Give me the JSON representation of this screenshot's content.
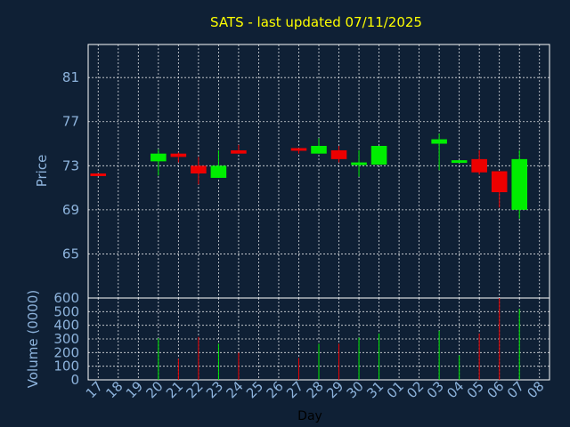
{
  "chart_data": {
    "type": "candlestick",
    "title": "SATS - last updated 07/11/2025",
    "price_axis": {
      "label": "Price",
      "ticks": [
        65,
        69,
        73,
        77,
        81
      ],
      "ylim": [
        61.0,
        84.0
      ]
    },
    "volume_axis": {
      "label": "Volume (0000)",
      "ticks": [
        0,
        100,
        200,
        300,
        400,
        500,
        600
      ],
      "ylim": [
        0,
        600
      ]
    },
    "xlabel": "Day",
    "categories": [
      "17",
      "18",
      "19",
      "20",
      "21",
      "22",
      "23",
      "24",
      "25",
      "26",
      "27",
      "28",
      "29",
      "30",
      "31",
      "01",
      "02",
      "03",
      "04",
      "05",
      "06",
      "07",
      "08"
    ],
    "candles": [
      {
        "day": "17",
        "open": 72.3,
        "close": 72.1,
        "high": 72.3,
        "low": 72.1,
        "volume": 0
      },
      {
        "day": "20",
        "open": 73.4,
        "close": 74.1,
        "high": 74.5,
        "low": 72.1,
        "volume": 305
      },
      {
        "day": "21",
        "open": 74.1,
        "close": 73.8,
        "high": 74.2,
        "low": 73.3,
        "volume": 155
      },
      {
        "day": "22",
        "open": 73.0,
        "close": 72.3,
        "high": 73.8,
        "low": 71.3,
        "volume": 315
      },
      {
        "day": "23",
        "open": 71.9,
        "close": 73.0,
        "high": 74.4,
        "low": 71.9,
        "volume": 265
      },
      {
        "day": "24",
        "open": 74.4,
        "close": 74.1,
        "high": 74.9,
        "low": 74.1,
        "volume": 200
      },
      {
        "day": "27",
        "open": 74.6,
        "close": 74.4,
        "high": 74.6,
        "low": 74.1,
        "volume": 160
      },
      {
        "day": "28",
        "open": 74.1,
        "close": 74.8,
        "high": 75.5,
        "low": 74.1,
        "volume": 265
      },
      {
        "day": "29",
        "open": 74.4,
        "close": 73.6,
        "high": 74.8,
        "low": 73.3,
        "volume": 265
      },
      {
        "day": "30",
        "open": 73.1,
        "close": 73.3,
        "high": 74.4,
        "low": 72.0,
        "volume": 310
      },
      {
        "day": "31",
        "open": 73.1,
        "close": 74.8,
        "high": 74.8,
        "low": 73.1,
        "volume": 340
      },
      {
        "day": "03",
        "open": 75.0,
        "close": 75.4,
        "high": 75.9,
        "low": 72.6,
        "volume": 360
      },
      {
        "day": "04",
        "open": 73.3,
        "close": 73.5,
        "high": 73.5,
        "low": 73.3,
        "volume": 180
      },
      {
        "day": "05",
        "open": 73.6,
        "close": 72.4,
        "high": 74.4,
        "low": 72.2,
        "volume": 340
      },
      {
        "day": "06",
        "open": 72.5,
        "close": 70.6,
        "high": 72.5,
        "low": 69.2,
        "volume": 600
      },
      {
        "day": "07",
        "open": 69.0,
        "close": 73.6,
        "high": 74.4,
        "low": 68.2,
        "volume": 520
      }
    ],
    "colors": {
      "background": "#0f2035",
      "up": "#00ee00",
      "down": "#ee0000",
      "title": "#ffff00",
      "ticks": "#8db3dc",
      "grid": "#ffffff"
    },
    "grid": true
  }
}
